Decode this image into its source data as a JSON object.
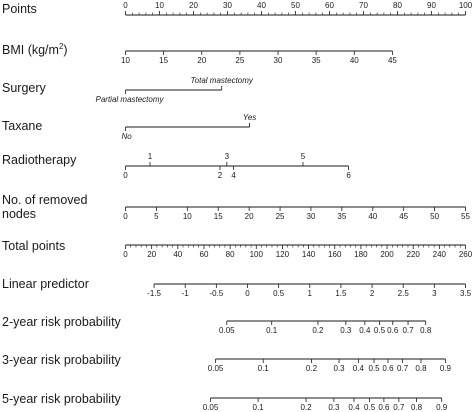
{
  "chart_data": {
    "type": "nomogram",
    "rows": [
      {
        "id": "points",
        "label": "Points",
        "kind": "scale",
        "range": [
          0,
          100
        ],
        "ticks": [
          {
            "value": 0,
            "text": "0"
          },
          {
            "value": 10,
            "text": "10"
          },
          {
            "value": 20,
            "text": "20"
          },
          {
            "value": 30,
            "text": "30"
          },
          {
            "value": 40,
            "text": "40"
          },
          {
            "value": 50,
            "text": "50"
          },
          {
            "value": 60,
            "text": "60"
          },
          {
            "value": 70,
            "text": "70"
          },
          {
            "value": 80,
            "text": "80"
          },
          {
            "value": 90,
            "text": "90"
          },
          {
            "value": 100,
            "text": "100"
          }
        ],
        "minor_step": 2,
        "labels_above": true
      },
      {
        "id": "bmi",
        "label_parts": [
          "BMI (kg/m",
          "2",
          ")"
        ],
        "kind": "scale",
        "points_range": [
          0,
          78.5
        ],
        "range": [
          10,
          45
        ],
        "ticks": [
          {
            "value": 10,
            "text": "10"
          },
          {
            "value": 15,
            "text": "15"
          },
          {
            "value": 20,
            "text": "20"
          },
          {
            "value": 25,
            "text": "25"
          },
          {
            "value": 30,
            "text": "30"
          },
          {
            "value": 35,
            "text": "35"
          },
          {
            "value": 40,
            "text": "40"
          },
          {
            "value": 45,
            "text": "45"
          }
        ]
      },
      {
        "id": "surgery",
        "label": "Surgery",
        "kind": "categorical",
        "categories": [
          {
            "text": "Partial mastectomy",
            "points": 0,
            "position": "below",
            "italic": true
          },
          {
            "text": "Total mastectomy",
            "points": 28.3,
            "position": "above",
            "italic": true
          }
        ]
      },
      {
        "id": "taxane",
        "label": "Taxane",
        "kind": "categorical",
        "categories": [
          {
            "text": "No",
            "points": 0,
            "position": "below",
            "italic": true
          },
          {
            "text": "Yes",
            "points": 36.5,
            "position": "above",
            "italic": true
          }
        ]
      },
      {
        "id": "radiotherapy",
        "label": "Radiotherapy",
        "kind": "categorical",
        "categories": [
          {
            "text": "0",
            "points": 0,
            "position": "below"
          },
          {
            "text": "1",
            "points": 7.2,
            "position": "above"
          },
          {
            "text": "2",
            "points": 27.8,
            "position": "below"
          },
          {
            "text": "3",
            "points": 29.8,
            "position": "above"
          },
          {
            "text": "4",
            "points": 31.8,
            "position": "below"
          },
          {
            "text": "5",
            "points": 52.2,
            "position": "above"
          },
          {
            "text": "6",
            "points": 65.6,
            "position": "below"
          }
        ]
      },
      {
        "id": "removed_nodes",
        "label_lines": [
          "No. of removed",
          "nodes"
        ],
        "kind": "scale",
        "points_range": [
          0,
          100
        ],
        "range": [
          0,
          55
        ],
        "ticks": [
          {
            "value": 0,
            "text": "0"
          },
          {
            "value": 5,
            "text": "5"
          },
          {
            "value": 10,
            "text": "10"
          },
          {
            "value": 15,
            "text": "15"
          },
          {
            "value": 20,
            "text": "20"
          },
          {
            "value": 25,
            "text": "25"
          },
          {
            "value": 30,
            "text": "30"
          },
          {
            "value": 35,
            "text": "35"
          },
          {
            "value": 40,
            "text": "40"
          },
          {
            "value": 45,
            "text": "45"
          },
          {
            "value": 50,
            "text": "50"
          },
          {
            "value": 55,
            "text": "55"
          }
        ]
      },
      {
        "id": "total_points",
        "label": "Total points",
        "kind": "scale",
        "points_range": [
          0,
          100
        ],
        "range": [
          0,
          260
        ],
        "ticks": [
          {
            "value": 0,
            "text": "0"
          },
          {
            "value": 20,
            "text": "20"
          },
          {
            "value": 40,
            "text": "40"
          },
          {
            "value": 60,
            "text": "60"
          },
          {
            "value": 80,
            "text": "80"
          },
          {
            "value": 100,
            "text": "100"
          },
          {
            "value": 120,
            "text": "120"
          },
          {
            "value": 140,
            "text": "140"
          },
          {
            "value": 160,
            "text": "160"
          },
          {
            "value": 180,
            "text": "180"
          },
          {
            "value": 200,
            "text": "200"
          },
          {
            "value": 220,
            "text": "220"
          },
          {
            "value": 240,
            "text": "240"
          },
          {
            "value": 260,
            "text": "260"
          }
        ],
        "minor_step": 4
      },
      {
        "id": "linear_predictor",
        "label": "Linear predictor",
        "kind": "scale",
        "points_range": [
          8.4,
          100
        ],
        "range": [
          -1.5,
          3.5
        ],
        "ticks": [
          {
            "value": -1.5,
            "text": "-1.5"
          },
          {
            "value": -1,
            "text": "-1"
          },
          {
            "value": -0.5,
            "text": "-0.5"
          },
          {
            "value": 0,
            "text": "0"
          },
          {
            "value": 0.5,
            "text": "0.5"
          },
          {
            "value": 1,
            "text": "1"
          },
          {
            "value": 1.5,
            "text": "1.5"
          },
          {
            "value": 2,
            "text": "2"
          },
          {
            "value": 2.5,
            "text": "2.5"
          },
          {
            "value": 3,
            "text": "3"
          },
          {
            "value": 3.5,
            "text": "3.5"
          }
        ]
      },
      {
        "id": "risk_2y",
        "label": "2-year risk probability",
        "kind": "probability",
        "ticks": [
          {
            "text": "0.05",
            "points": 29.8
          },
          {
            "text": "0.1",
            "points": 43.0
          },
          {
            "text": "0.2",
            "points": 56.6
          },
          {
            "text": "0.3",
            "points": 64.8
          },
          {
            "text": "0.4",
            "points": 70.4
          },
          {
            "text": "0.5",
            "points": 74.7
          },
          {
            "text": "0.6",
            "points": 78.6
          },
          {
            "text": "0.7",
            "points": 83.1
          },
          {
            "text": "0.8",
            "points": 88.3
          }
        ]
      },
      {
        "id": "risk_3y",
        "label": "3-year risk probability",
        "kind": "probability",
        "ticks": [
          {
            "text": "0.05",
            "points": 26.5
          },
          {
            "text": "0.1",
            "points": 40.5
          },
          {
            "text": "0.2",
            "points": 54.7
          },
          {
            "text": "0.3",
            "points": 62.8
          },
          {
            "text": "0.4",
            "points": 68.5
          },
          {
            "text": "0.5",
            "points": 73.1
          },
          {
            "text": "0.6",
            "points": 77.2
          },
          {
            "text": "0.7",
            "points": 81.5
          },
          {
            "text": "0.8",
            "points": 86.9
          },
          {
            "text": "0.9",
            "points": 94.1
          }
        ]
      },
      {
        "id": "risk_5y",
        "label": "5-year risk probability",
        "kind": "probability",
        "ticks": [
          {
            "text": "0.05",
            "points": 25.0
          },
          {
            "text": "0.1",
            "points": 39.0
          },
          {
            "text": "0.2",
            "points": 53.1
          },
          {
            "text": "0.3",
            "points": 61.3
          },
          {
            "text": "0.4",
            "points": 67.2
          },
          {
            "text": "0.5",
            "points": 71.8
          },
          {
            "text": "0.6",
            "points": 76.0
          },
          {
            "text": "0.7",
            "points": 80.4
          },
          {
            "text": "0.8",
            "points": 85.6
          },
          {
            "text": "0.9",
            "points": 93.0
          }
        ]
      }
    ]
  }
}
